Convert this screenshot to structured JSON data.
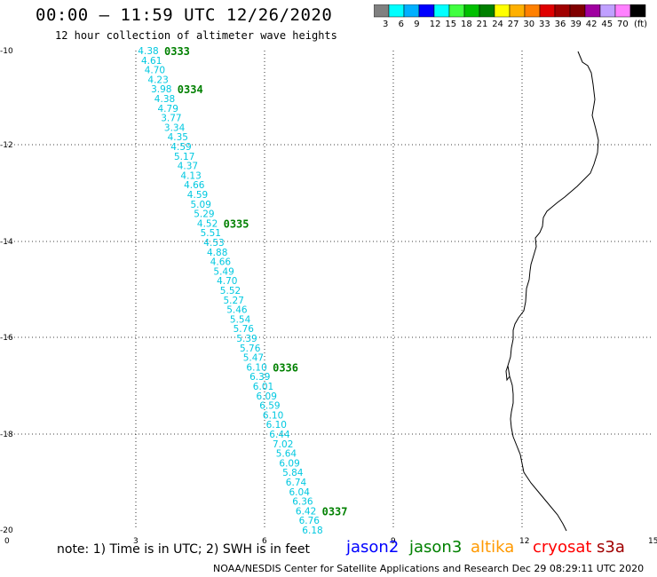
{
  "header": {
    "title": "00:00 – 11:59 UTC 12/26/2020",
    "subtitle": "12 hour collection of altimeter wave heights"
  },
  "legend": {
    "colors": [
      "#808080",
      "#00ffff",
      "#00b0ff",
      "#0000ff",
      "#00ffff",
      "#40ff40",
      "#00c000",
      "#008000",
      "#ffff00",
      "#ffb000",
      "#ff8000",
      "#e00000",
      "#a00000",
      "#800000",
      "#a000a0",
      "#c0a0ff",
      "#ff80ff",
      "#000000"
    ],
    "labels": [
      "3",
      "6",
      "9",
      "12",
      "15",
      "18",
      "21",
      "24",
      "27",
      "30",
      "33",
      "36",
      "39",
      "42",
      "45",
      "70"
    ],
    "unit": "(ft)"
  },
  "axes": {
    "x_ticks": [
      "0",
      "3",
      "6",
      "9",
      "12",
      "15"
    ],
    "y_ticks": [
      "-10",
      "-12",
      "-14",
      "-16",
      "-18",
      "-20"
    ]
  },
  "track": {
    "wave_heights": [
      "4.38",
      "4.61",
      "4.70",
      "4.23",
      "3.98",
      "4.38",
      "4.79",
      "3.77",
      "3.34",
      "4.35",
      "4.59",
      "5.17",
      "4.37",
      "4.13",
      "4.66",
      "4.59",
      "5.09",
      "5.29",
      "4.52",
      "5.51",
      "4.53",
      "4.88",
      "4.66",
      "5.49",
      "4.70",
      "5.52",
      "5.27",
      "5.46",
      "5.54",
      "5.76",
      "5.39",
      "5.76",
      "5.47",
      "6.10",
      "6.39",
      "6.01",
      "6.09",
      "6.59",
      "6.10",
      "6.10",
      "6.44",
      "7.02",
      "5.64",
      "6.09",
      "5.84",
      "6.74",
      "6.04",
      "6.36",
      "6.42",
      "6.76",
      "6.18"
    ],
    "time_labels": [
      {
        "text": "0333",
        "index": 0
      },
      {
        "text": "0334",
        "index": 4
      },
      {
        "text": "0335",
        "index": 18
      },
      {
        "text": "0336",
        "index": 33
      },
      {
        "text": "0337",
        "index": 48
      }
    ]
  },
  "footer": {
    "note": "note: 1) Time is in UTC; 2) SWH is in feet",
    "satellites": [
      {
        "name": "jason2",
        "color": "#0000ff"
      },
      {
        "name": "jason3",
        "color": "#008000"
      },
      {
        "name": "altika",
        "color": "#ff9900"
      },
      {
        "name": "cryosat",
        "color": "#ff0000"
      },
      {
        "name": "s3a",
        "color": "#a00000"
      }
    ],
    "credit": "NOAA/NESDIS Center for Satellite Applications and Research     Dec 29 08:29:11 UTC 2020"
  }
}
